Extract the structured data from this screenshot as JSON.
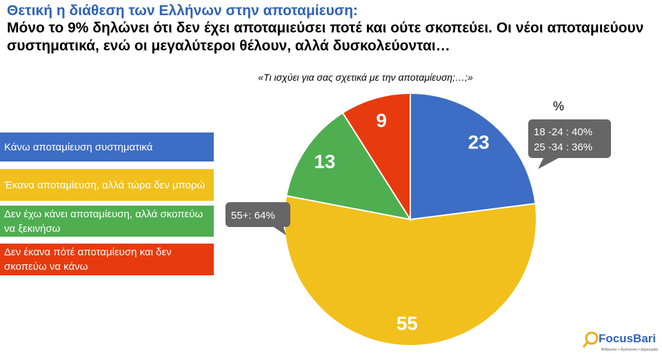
{
  "chart_data": {
    "type": "pie",
    "title": "Θετική η διάθεση των Ελλήνων στην αποταμίευση:",
    "subtitle": "Μόνο το 9% δηλώνει ότι δεν έχει αποταμιεύσει ποτέ και ούτε σκοπεύει.  Οι νέοι αποταμιεύουν συστηματικά, ενώ οι μεγαλύτεροι θέλουν, αλλά δυσκολεύονται…",
    "question": "«Τι ισχύει για σας σχετικά με την αποταμίευση;…;»",
    "unit_label": "%",
    "categories": [
      "Κάνω αποταμίευση συστηματικά",
      "Έκανα αποταμίευση, αλλά τώρα δεν μπορώ",
      "Δεν έχω κάνει αποταμίευση, αλλά σκοπεύω να ξεκινήσω",
      "Δεν έκανα πότέ αποταμίευση και δεν σκοπεύω να κάνω"
    ],
    "values": [
      23,
      55,
      13,
      9
    ],
    "colors": [
      "#3d6dc4",
      "#f2c01c",
      "#4eae50",
      "#e83a0f"
    ],
    "annotations": [
      [
        "18 -24 : 40%",
        "25 -34 : 36%"
      ],
      [
        "55+: 64%"
      ]
    ],
    "logo": {
      "name": "FocusBari",
      "tagline": "Άνθρωποι + Έμπνευση + Δημιουργία"
    }
  }
}
